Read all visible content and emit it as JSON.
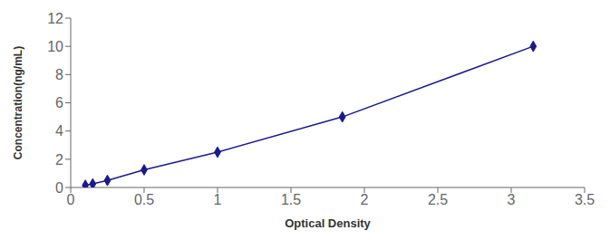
{
  "chart_data": {
    "type": "line",
    "x": [
      0.1,
      0.15,
      0.25,
      0.5,
      1.0,
      1.85,
      3.15
    ],
    "values": [
      0.156,
      0.25,
      0.5,
      1.25,
      2.5,
      5.0,
      10.0
    ],
    "xlabel": "Optical Density",
    "ylabel": "Concentration(ng/mL)",
    "xlim": [
      0,
      3.5
    ],
    "ylim": [
      0,
      12
    ],
    "xticks": [
      0,
      0.5,
      1,
      1.5,
      2,
      2.5,
      3,
      3.5
    ],
    "yticks": [
      0,
      2,
      4,
      6,
      8,
      10,
      12
    ],
    "color": "#1a1a8c",
    "marker": "diamond"
  }
}
